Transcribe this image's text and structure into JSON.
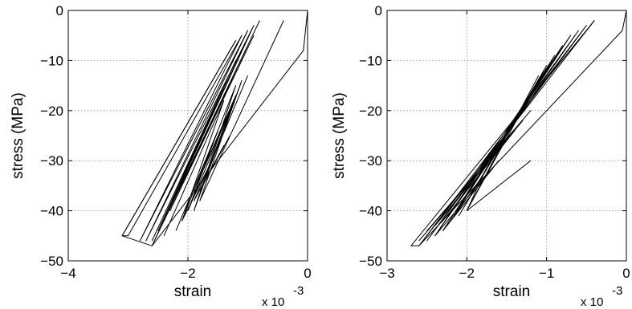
{
  "chart_data": [
    {
      "type": "line",
      "xlabel": "strain",
      "ylabel": "stress (MPa)",
      "x_multiplier_label": "x 10",
      "x_multiplier_exponent": "-3",
      "xlim": [
        -0.004,
        0
      ],
      "ylim": [
        -50,
        0
      ],
      "xticks": [
        -0.004,
        -0.002,
        0
      ],
      "xtick_labels": [
        "−4",
        "−2",
        "0"
      ],
      "yticks": [
        -50,
        -40,
        -30,
        -20,
        -10,
        0
      ],
      "ytick_labels": [
        "−50",
        "−40",
        "−30",
        "−20",
        "−10",
        "0"
      ],
      "grid": true,
      "series": [
        {
          "x": [
            0.0,
            -7e-05,
            -0.0026,
            -0.0031,
            -0.0012
          ],
          "y": [
            0,
            -8,
            -47,
            -45,
            -6
          ]
        },
        {
          "x": [
            -0.0012,
            -0.0031,
            -0.003
          ],
          "y": [
            -6,
            -45,
            -45
          ]
        },
        {
          "x": [
            -0.003,
            -0.0011,
            -0.0028,
            -0.001,
            -0.0027,
            -0.0009,
            -0.0026,
            -0.0008
          ],
          "y": [
            -45,
            -5,
            -46,
            -4,
            -46,
            -3,
            -47,
            -2
          ]
        },
        {
          "x": [
            -0.0026,
            -0.0012,
            -0.0025,
            -0.0011,
            -0.0024,
            -0.001,
            -0.0023,
            -0.0009
          ],
          "y": [
            -46,
            -10,
            -44,
            -8,
            -42,
            -7,
            -40,
            -5
          ]
        },
        {
          "x": [
            -0.0024,
            -0.0014,
            -0.0021,
            -0.0012,
            -0.0019,
            -0.0011,
            -0.0018,
            -0.0004
          ],
          "y": [
            -45,
            -18,
            -42,
            -15,
            -40,
            -14,
            -38,
            -2
          ]
        },
        {
          "x": [
            -0.0022,
            -0.0015,
            -0.002,
            -0.0013,
            -0.0019,
            -0.0012,
            -0.0017,
            -0.001
          ],
          "y": [
            -44,
            -24,
            -40,
            -20,
            -36,
            -17,
            -33,
            -13
          ]
        },
        {
          "x": [
            -0.0021,
            -0.0016,
            -0.0019,
            -0.0014,
            -0.0018,
            -0.0013
          ],
          "y": [
            -42,
            -30,
            -38,
            -27,
            -36,
            -25
          ]
        }
      ]
    },
    {
      "type": "line",
      "xlabel": "strain",
      "ylabel": "stress (MPa)",
      "x_multiplier_label": "x 10",
      "x_multiplier_exponent": "-3",
      "xlim": [
        -0.003,
        0
      ],
      "ylim": [
        -50,
        0
      ],
      "xticks": [
        -0.003,
        -0.002,
        -0.001,
        0
      ],
      "xtick_labels": [
        "−3",
        "−2",
        "−1",
        "0"
      ],
      "yticks": [
        -50,
        -40,
        -30,
        -20,
        -10,
        0
      ],
      "ytick_labels": [
        "−50",
        "−40",
        "−30",
        "−20",
        "−10",
        "0"
      ],
      "grid": true,
      "series": [
        {
          "x": [
            0.0,
            -5e-05,
            -0.0026,
            -0.0027,
            -0.0004
          ],
          "y": [
            0,
            -4,
            -47,
            -47,
            -2
          ]
        },
        {
          "x": [
            -0.0004,
            -0.0026,
            -0.0005,
            -0.0025,
            -0.0006,
            -0.0024,
            -0.0007,
            -0.0023
          ],
          "y": [
            -2,
            -47,
            -3,
            -46,
            -4,
            -45,
            -5,
            -44
          ]
        },
        {
          "x": [
            -0.0023,
            -0.0008,
            -0.0022,
            -0.0009,
            -0.0021,
            -0.001,
            -0.002,
            -0.0011
          ],
          "y": [
            -44,
            -7,
            -42,
            -9,
            -41,
            -11,
            -40,
            -13
          ]
        },
        {
          "x": [
            -0.0026,
            -0.0012,
            -0.0025,
            -0.0013,
            -0.0024,
            -0.0014,
            -0.0023,
            -0.0015
          ],
          "y": [
            -46,
            -20,
            -44,
            -22,
            -43,
            -24,
            -42,
            -26
          ]
        },
        {
          "x": [
            -0.0024,
            -0.0016,
            -0.0023,
            -0.0017,
            -0.0022,
            -0.0018,
            -0.002,
            -0.0012
          ],
          "y": [
            -45,
            -30,
            -44,
            -32,
            -42,
            -33,
            -40,
            -30
          ]
        }
      ]
    }
  ]
}
